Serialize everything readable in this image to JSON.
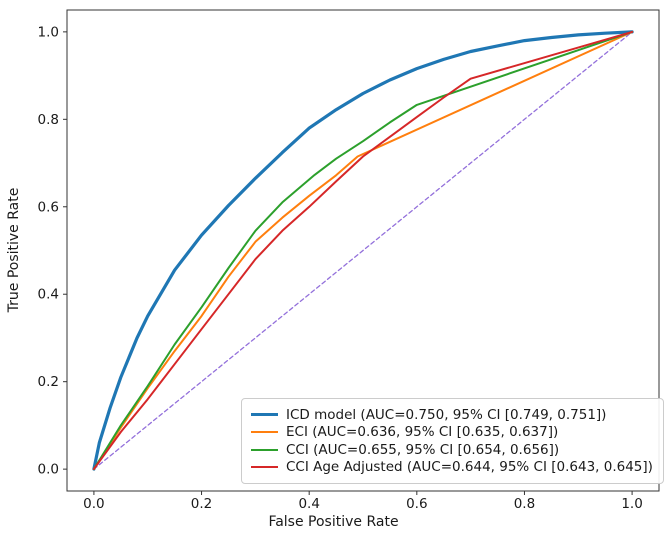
{
  "figure": {
    "kind": "roc-curve-plot",
    "background": "#ffffff",
    "spine_color": "#333333",
    "text_color": "#1a1a1a"
  },
  "chart_data": {
    "type": "line",
    "title": "",
    "xlabel": "False Positive Rate",
    "ylabel": "True Positive Rate",
    "xlim": [
      -0.05,
      1.05
    ],
    "ylim": [
      -0.05,
      1.05
    ],
    "grid": false,
    "legend_position": "lower right",
    "x_ticks": [
      {
        "value": 0.0,
        "label": "0.0"
      },
      {
        "value": 0.2,
        "label": "0.2"
      },
      {
        "value": 0.4,
        "label": "0.4"
      },
      {
        "value": 0.6,
        "label": "0.6"
      },
      {
        "value": 0.8,
        "label": "0.8"
      },
      {
        "value": 1.0,
        "label": "1.0"
      }
    ],
    "y_ticks": [
      {
        "value": 0.0,
        "label": "0.0"
      },
      {
        "value": 0.2,
        "label": "0.2"
      },
      {
        "value": 0.4,
        "label": "0.4"
      },
      {
        "value": 0.6,
        "label": "0.6"
      },
      {
        "value": 0.8,
        "label": "0.8"
      },
      {
        "value": 1.0,
        "label": "1.0"
      }
    ],
    "series": [
      {
        "name": "icd-model",
        "label": "ICD model (AUC=0.750, 95% CI [0.749, 0.751])",
        "auc": 0.75,
        "ci": [
          0.749,
          0.751
        ],
        "color": "#1f77b4",
        "width": 3.2,
        "dash": null,
        "points": [
          [
            0,
            0
          ],
          [
            0.01,
            0.06
          ],
          [
            0.03,
            0.14
          ],
          [
            0.05,
            0.21
          ],
          [
            0.08,
            0.3
          ],
          [
            0.1,
            0.35
          ],
          [
            0.15,
            0.455
          ],
          [
            0.2,
            0.535
          ],
          [
            0.25,
            0.603
          ],
          [
            0.3,
            0.665
          ],
          [
            0.35,
            0.724
          ],
          [
            0.4,
            0.78
          ],
          [
            0.45,
            0.822
          ],
          [
            0.5,
            0.859
          ],
          [
            0.55,
            0.89
          ],
          [
            0.6,
            0.916
          ],
          [
            0.65,
            0.937
          ],
          [
            0.7,
            0.955
          ],
          [
            0.75,
            0.968
          ],
          [
            0.8,
            0.98
          ],
          [
            0.85,
            0.987
          ],
          [
            0.9,
            0.993
          ],
          [
            0.95,
            0.997
          ],
          [
            1,
            1
          ]
        ]
      },
      {
        "name": "eci",
        "label": "ECI (AUC=0.636, 95% CI [0.635, 0.637])",
        "auc": 0.636,
        "ci": [
          0.635,
          0.637
        ],
        "color": "#ff7f0e",
        "width": 2,
        "dash": null,
        "points": [
          [
            0,
            0
          ],
          [
            0.05,
            0.095
          ],
          [
            0.1,
            0.185
          ],
          [
            0.15,
            0.27
          ],
          [
            0.2,
            0.35
          ],
          [
            0.25,
            0.44
          ],
          [
            0.3,
            0.52
          ],
          [
            0.35,
            0.575
          ],
          [
            0.4,
            0.625
          ],
          [
            0.45,
            0.672
          ],
          [
            0.49,
            0.715
          ],
          [
            1,
            1
          ]
        ]
      },
      {
        "name": "cci",
        "label": "CCI (AUC=0.655, 95% CI [0.654, 0.656])",
        "auc": 0.655,
        "ci": [
          0.654,
          0.656
        ],
        "color": "#2ca02c",
        "width": 2,
        "dash": null,
        "points": [
          [
            0,
            0
          ],
          [
            0.05,
            0.1
          ],
          [
            0.1,
            0.19
          ],
          [
            0.15,
            0.285
          ],
          [
            0.2,
            0.37
          ],
          [
            0.25,
            0.46
          ],
          [
            0.3,
            0.545
          ],
          [
            0.35,
            0.61
          ],
          [
            0.41,
            0.673
          ],
          [
            0.45,
            0.71
          ],
          [
            0.5,
            0.75
          ],
          [
            0.55,
            0.793
          ],
          [
            0.6,
            0.833
          ],
          [
            1,
            1
          ]
        ]
      },
      {
        "name": "cci-age-adjusted",
        "label": "CCI Age Adjusted (AUC=0.644, 95% CI [0.643, 0.645])",
        "auc": 0.644,
        "ci": [
          0.643,
          0.645
        ],
        "color": "#d62728",
        "width": 2,
        "dash": null,
        "points": [
          [
            0,
            0
          ],
          [
            0.05,
            0.085
          ],
          [
            0.1,
            0.16
          ],
          [
            0.15,
            0.24
          ],
          [
            0.2,
            0.32
          ],
          [
            0.25,
            0.4
          ],
          [
            0.3,
            0.48
          ],
          [
            0.35,
            0.545
          ],
          [
            0.4,
            0.6
          ],
          [
            0.45,
            0.658
          ],
          [
            0.5,
            0.715
          ],
          [
            0.55,
            0.76
          ],
          [
            0.6,
            0.805
          ],
          [
            0.65,
            0.85
          ],
          [
            0.7,
            0.893
          ],
          [
            1,
            1
          ]
        ]
      },
      {
        "name": "chance-diagonal",
        "label": "",
        "color": "#9370db",
        "width": 1.3,
        "dash": "4,3",
        "points": [
          [
            0,
            0
          ],
          [
            1,
            1
          ]
        ]
      }
    ]
  }
}
